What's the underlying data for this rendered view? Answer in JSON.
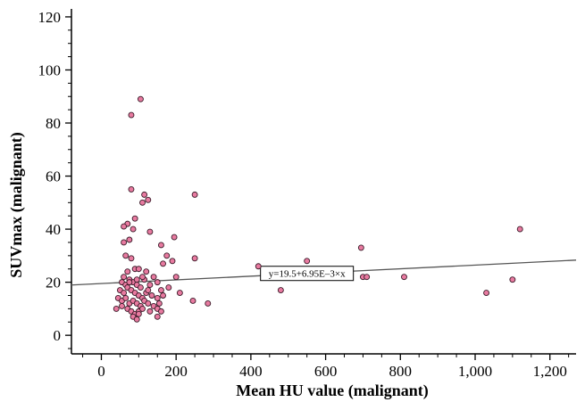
{
  "chart_data": {
    "type": "scatter",
    "title": "",
    "xlabel": "Mean HU value (malignant)",
    "ylabel": "SUVmax (malignant)",
    "xlim": [
      -80,
      1270
    ],
    "ylim": [
      -7,
      123
    ],
    "x_ticks": [
      0,
      200,
      400,
      600,
      800,
      1000,
      1200
    ],
    "x_tick_labels": [
      "0",
      "200",
      "400",
      "600",
      "800",
      "1,000",
      "1,200"
    ],
    "y_ticks": [
      0,
      20,
      40,
      60,
      80,
      100,
      120
    ],
    "y_tick_labels": [
      "0",
      "20",
      "40",
      "60",
      "80",
      "100",
      "120"
    ],
    "grid": false,
    "marker_color": "#e87aa0",
    "marker_edge_color": "#3a1a28",
    "line_color": "#555555",
    "fit_line": {
      "intercept": 19.5,
      "slope": 0.00695,
      "label": "y=19.5+6.95E–3×x",
      "label_x": 550
    },
    "points": [
      [
        105,
        89
      ],
      [
        80,
        83
      ],
      [
        80,
        55
      ],
      [
        115,
        53
      ],
      [
        125,
        51
      ],
      [
        250,
        53
      ],
      [
        110,
        50
      ],
      [
        70,
        42
      ],
      [
        60,
        41
      ],
      [
        90,
        44
      ],
      [
        85,
        40
      ],
      [
        130,
        39
      ],
      [
        60,
        35
      ],
      [
        75,
        36
      ],
      [
        160,
        34
      ],
      [
        195,
        37
      ],
      [
        175,
        30
      ],
      [
        190,
        28
      ],
      [
        250,
        29
      ],
      [
        165,
        27
      ],
      [
        695,
        33
      ],
      [
        1120,
        40
      ],
      [
        80,
        29
      ],
      [
        65,
        30
      ],
      [
        420,
        26
      ],
      [
        550,
        28
      ],
      [
        480,
        17
      ],
      [
        700,
        22
      ],
      [
        710,
        22
      ],
      [
        810,
        22
      ],
      [
        1030,
        16
      ],
      [
        1100,
        21
      ],
      [
        210,
        16
      ],
      [
        245,
        13
      ],
      [
        285,
        12
      ],
      [
        60,
        22
      ],
      [
        70,
        24
      ],
      [
        90,
        25
      ],
      [
        100,
        25
      ],
      [
        120,
        24
      ],
      [
        140,
        22
      ],
      [
        55,
        20
      ],
      [
        65,
        19
      ],
      [
        75,
        21
      ],
      [
        85,
        20
      ],
      [
        95,
        19
      ],
      [
        105,
        18
      ],
      [
        115,
        21
      ],
      [
        130,
        19
      ],
      [
        150,
        20
      ],
      [
        160,
        17
      ],
      [
        180,
        18
      ],
      [
        50,
        17
      ],
      [
        60,
        16
      ],
      [
        70,
        18
      ],
      [
        80,
        17
      ],
      [
        90,
        16
      ],
      [
        100,
        15
      ],
      [
        110,
        14
      ],
      [
        120,
        16
      ],
      [
        135,
        15
      ],
      [
        150,
        14
      ],
      [
        165,
        15
      ],
      [
        45,
        14
      ],
      [
        55,
        13
      ],
      [
        65,
        14
      ],
      [
        75,
        12
      ],
      [
        85,
        13
      ],
      [
        95,
        12
      ],
      [
        105,
        11
      ],
      [
        115,
        13
      ],
      [
        125,
        12
      ],
      [
        140,
        11
      ],
      [
        155,
        12
      ],
      [
        40,
        10
      ],
      [
        55,
        11
      ],
      [
        70,
        10
      ],
      [
        80,
        9
      ],
      [
        90,
        8
      ],
      [
        100,
        9
      ],
      [
        110,
        10
      ],
      [
        130,
        9
      ],
      [
        150,
        10
      ],
      [
        160,
        9
      ],
      [
        85,
        7
      ],
      [
        95,
        6
      ],
      [
        100,
        8
      ],
      [
        150,
        7
      ],
      [
        75,
        20
      ],
      [
        95,
        21
      ],
      [
        125,
        17
      ],
      [
        110,
        22
      ],
      [
        200,
        22
      ]
    ]
  }
}
